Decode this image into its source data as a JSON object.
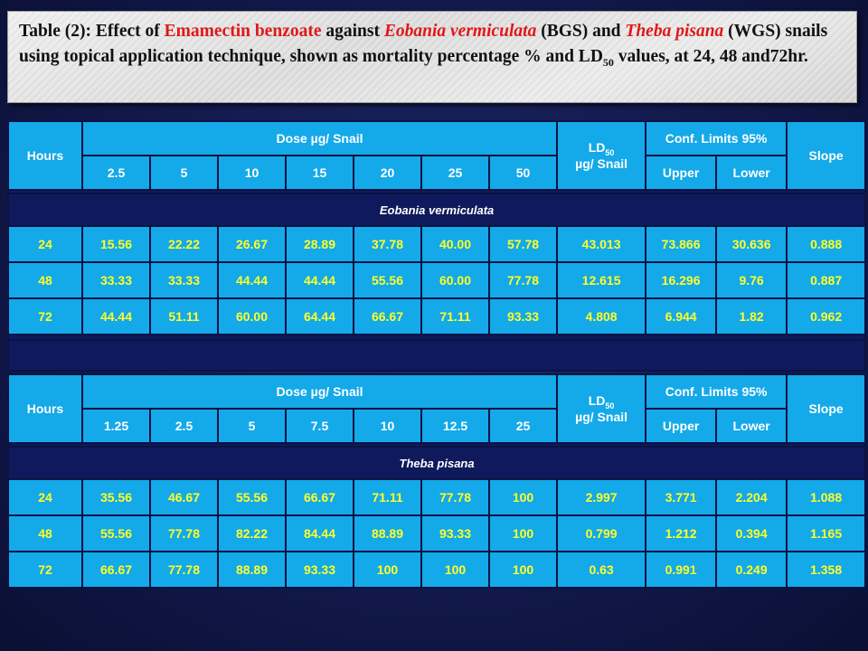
{
  "title": {
    "part1": "Table (2):  Effect of ",
    "compound": "Emamectin benzoate",
    "part2": " against ",
    "species1": "Eobania vermiculata",
    "part3": " (BGS) and ",
    "species2": "Theba pisana",
    "part4": " (WGS) snails using topical application technique, shown as mortality percentage % and LD",
    "sub": "50",
    "part5": " values, at 24, 48 and72hr."
  },
  "header": {
    "hours": "Hours",
    "dose": "Dose µg/ Snail",
    "ld_main": "LD",
    "ld_sub": "50",
    "ld_unit": "µg/ Snail",
    "conf": "Conf. Limits 95%",
    "slope": "Slope",
    "upper": "Upper",
    "lower": "Lower"
  },
  "table1": {
    "doses": [
      "2.5",
      "5",
      "10",
      "15",
      "20",
      "25",
      "50"
    ],
    "species": "Eobania vermiculata",
    "rows": [
      [
        "24",
        "15.56",
        "22.22",
        "26.67",
        "28.89",
        "37.78",
        "40.00",
        "57.78",
        "43.013",
        "73.866",
        "30.636",
        "0.888"
      ],
      [
        "48",
        "33.33",
        "33.33",
        "44.44",
        "44.44",
        "55.56",
        "60.00",
        "77.78",
        "12.615",
        "16.296",
        "9.76",
        "0.887"
      ],
      [
        "72",
        "44.44",
        "51.11",
        "60.00",
        "64.44",
        "66.67",
        "71.11",
        "93.33",
        "4.808",
        "6.944",
        "1.82",
        "0.962"
      ]
    ]
  },
  "table2": {
    "doses": [
      "1.25",
      "2.5",
      "5",
      "7.5",
      "10",
      "12.5",
      "25"
    ],
    "species": "Theba pisana",
    "rows": [
      [
        "24",
        "35.56",
        "46.67",
        "55.56",
        "66.67",
        "71.11",
        "77.78",
        "100",
        "2.997",
        "3.771",
        "2.204",
        "1.088"
      ],
      [
        "48",
        "55.56",
        "77.78",
        "82.22",
        "84.44",
        "88.89",
        "93.33",
        "100",
        "0.799",
        "1.212",
        "0.394",
        "1.165"
      ],
      [
        "72",
        "66.67",
        "77.78",
        "88.89",
        "93.33",
        "100",
        "100",
        "100",
        "0.63",
        "0.991",
        "0.249",
        "1.358"
      ]
    ]
  }
}
